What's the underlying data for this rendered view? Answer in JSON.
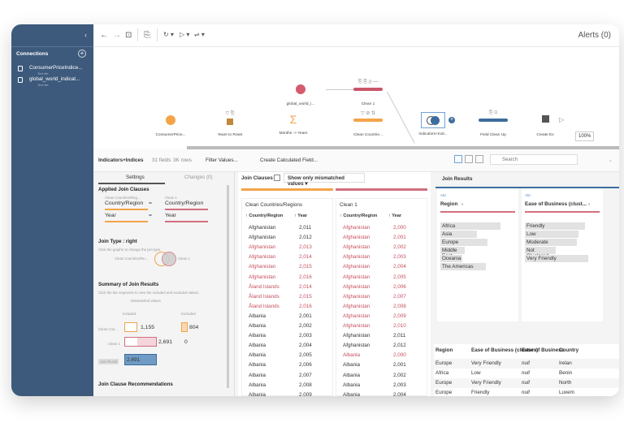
{
  "sidebar": {
    "collapse": "‹",
    "connections_label": "Connections",
    "add": "+",
    "items": [
      {
        "name": "ConsumerPriceIndice...",
        "type": "Text file"
      },
      {
        "name": "global_world_indicat...",
        "type": "Text file"
      }
    ]
  },
  "toolbar": {
    "back": "←",
    "forward": "→",
    "save": "⊡",
    "clip": "⎘",
    "refresh": "↻ ▾",
    "run": "▷ ▾",
    "tune": "⇌ ▾",
    "alerts": "Alerts (0)"
  },
  "flow": {
    "nodes": [
      {
        "label": "global_world_i...",
        "kind": "input",
        "color": "#d45b6e"
      },
      {
        "label": "Clean 1",
        "kind": "clean",
        "color": "#c9566a",
        "icons": "⎘ ⎘ ⊘ —"
      },
      {
        "label": "ConsumerPrice...",
        "kind": "input",
        "color": "#f3a449"
      },
      {
        "label": "Years to Rows",
        "kind": "pivot",
        "icons": "▽ ⎘"
      },
      {
        "label": "Months -> Years",
        "kind": "aggregate",
        "icon": "Σ"
      },
      {
        "label": "Clean Countrie...",
        "kind": "clean",
        "color": "#f3a449",
        "icons": "▽ ⊘ ⇅"
      },
      {
        "label": "Indicators+Indi...",
        "kind": "join"
      },
      {
        "label": "Field Clean Up",
        "kind": "clean",
        "color": "#3d6d9d",
        "icons": "⎘ ⊡"
      },
      {
        "label": "Create Ex",
        "kind": "output"
      }
    ],
    "zoom": "100%",
    "plus": "+"
  },
  "pane": {
    "title": "Indicators+Indices",
    "fields": "31 fields",
    "rows": "3K rows",
    "filter": "Filter Values...",
    "calc": "Create Calculated Field...",
    "search_placeholder": "Search",
    "chev": "⌄"
  },
  "settings": {
    "tabs": [
      "Settings",
      "Changes (0)"
    ],
    "applied": "Applied Join Clauses",
    "left_src": "Clean Countries/Reg...",
    "right_src": "Clean 1",
    "clauses": [
      {
        "left": "Country/Region",
        "op": "=",
        "right": "Country/Region"
      },
      {
        "left": "Year",
        "op": "=",
        "right": "Year"
      }
    ],
    "join_type": "Join Type : right",
    "join_hint": "Click the graphic to change the join type.",
    "venn_left": "Clean Countries/Re...",
    "venn_right": "Clean 1",
    "summary": "Summary of Join Results",
    "summary_hint": "Click the bar segments to view the included and excluded values.",
    "mismatched": "Mismatched values",
    "included": "Included",
    "excluded": "Excluded",
    "r1": "Clean Cou...",
    "r1_inc": "1,155",
    "r1_exc": "804",
    "r2": "Clean 1",
    "r2_inc": "2,691",
    "r2_exc": "0",
    "r3": "Join Result",
    "r3_val": "2,691",
    "recs": "Join Clause Recommendations"
  },
  "clauses": {
    "label": "Join Clauses",
    "filter": "Show only mismatched values",
    "left": {
      "title": "Clean Countries/Regions",
      "h1": "↑ Country/Region",
      "h2": "↑ Year",
      "rows": [
        [
          "Afghanistan",
          "2,011",
          0
        ],
        [
          "Afghanistan",
          "2,012",
          0
        ],
        [
          "Afghanistan",
          "2,013",
          1
        ],
        [
          "Afghanistan",
          "2,014",
          1
        ],
        [
          "Afghanistan",
          "2,015",
          1
        ],
        [
          "Afghanistan",
          "2,016",
          1
        ],
        [
          "Åland Islands",
          "2,014",
          1
        ],
        [
          "Åland Islands",
          "2,015",
          1
        ],
        [
          "Åland Islands",
          "2,016",
          1
        ],
        [
          "Albania",
          "2,001",
          0
        ],
        [
          "Albania",
          "2,002",
          0
        ],
        [
          "Albania",
          "2,003",
          0
        ],
        [
          "Albania",
          "2,004",
          0
        ],
        [
          "Albania",
          "2,005",
          0
        ],
        [
          "Albania",
          "2,006",
          0
        ],
        [
          "Albania",
          "2,007",
          0
        ],
        [
          "Albania",
          "2,008",
          0
        ],
        [
          "Albania",
          "2,009",
          0
        ]
      ]
    },
    "right": {
      "title": "Clean 1",
      "h1": "↑ Country/Region",
      "h2": "↑ Year",
      "rows": [
        [
          "Afghanistan",
          "2,000",
          1
        ],
        [
          "Afghanistan",
          "2,001",
          1
        ],
        [
          "Afghanistan",
          "2,002",
          1
        ],
        [
          "Afghanistan",
          "2,003",
          1
        ],
        [
          "Afghanistan",
          "2,004",
          1
        ],
        [
          "Afghanistan",
          "2,005",
          1
        ],
        [
          "Afghanistan",
          "2,006",
          1
        ],
        [
          "Afghanistan",
          "2,007",
          1
        ],
        [
          "Afghanistan",
          "2,008",
          1
        ],
        [
          "Afghanistan",
          "2,009",
          1
        ],
        [
          "Afghanistan",
          "2,010",
          1
        ],
        [
          "Afghanistan",
          "2,011",
          0
        ],
        [
          "Afghanistan",
          "2,012",
          0
        ],
        [
          "Albania",
          "2,000",
          1
        ],
        [
          "Albania",
          "2,001",
          0
        ],
        [
          "Albania",
          "2,002",
          0
        ],
        [
          "Albania",
          "2,003",
          0
        ],
        [
          "Albania",
          "2,004",
          0
        ]
      ]
    }
  },
  "results": {
    "title": "Join Results",
    "cards": [
      {
        "type": "Abc",
        "name": "Region",
        "count": "6",
        "values": [
          [
            "Africa",
            74
          ],
          [
            "Asia",
            45
          ],
          [
            "Europe",
            58
          ],
          [
            "Middle East",
            30
          ],
          [
            "Oceania",
            27
          ],
          [
            "The Americas",
            56
          ]
        ]
      },
      {
        "type": "Abc",
        "name": "Ease of Business (clust...",
        "count": "5",
        "values": [
          [
            "Friendly",
            74
          ],
          [
            "Low",
            66
          ],
          [
            "Moderate",
            64
          ],
          [
            "Not Clustered",
            38
          ],
          [
            "Very Friendly",
            78
          ]
        ]
      }
    ],
    "table": {
      "headers": [
        "Region",
        "Ease of Business (clusters)",
        "Ease of Business",
        "Country"
      ],
      "rows": [
        [
          "Europe",
          "Very Friendly",
          "null",
          "Irelan"
        ],
        [
          "Africa",
          "Low",
          "null",
          "Benin"
        ],
        [
          "Europe",
          "Very Friendly",
          "null",
          "North"
        ],
        [
          "Europe",
          "Friendly",
          "null",
          "Luxem"
        ]
      ]
    }
  }
}
